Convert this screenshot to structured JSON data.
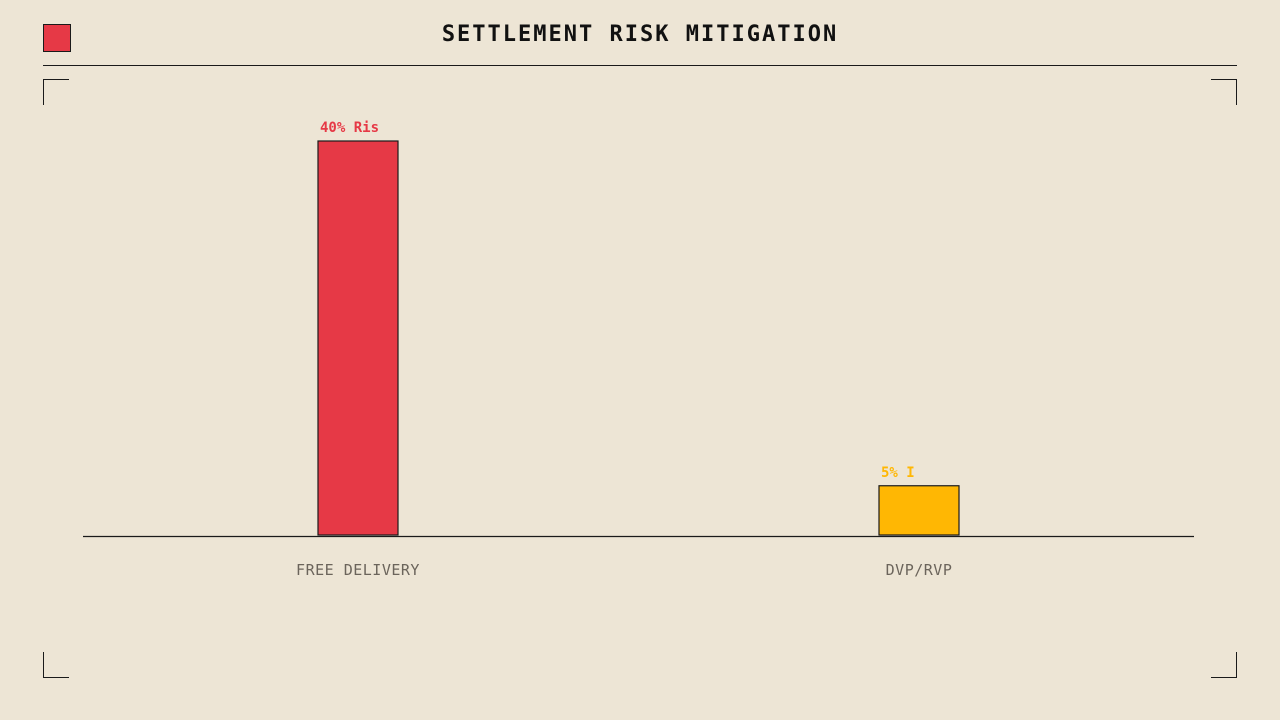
{
  "header": {
    "title": "SETTLEMENT RISK MITIGATION"
  },
  "chart_data": {
    "type": "bar",
    "title": "SETTLEMENT RISK MITIGATION",
    "xlabel": "",
    "ylabel": "",
    "categories": [
      "FREE DELIVERY",
      "DVP/RVP"
    ],
    "values": [
      40,
      5
    ],
    "data_labels": [
      "40% Ris",
      "5% I"
    ],
    "bar_colors": [
      "#e63946",
      "#ffb703"
    ],
    "ylim": [
      0,
      40
    ],
    "grid": false,
    "legend": "none"
  },
  "colors": {
    "background": "#ede5d5",
    "accent": "#e63946",
    "secondary": "#ffb703",
    "ink": "#1a1a1a"
  }
}
